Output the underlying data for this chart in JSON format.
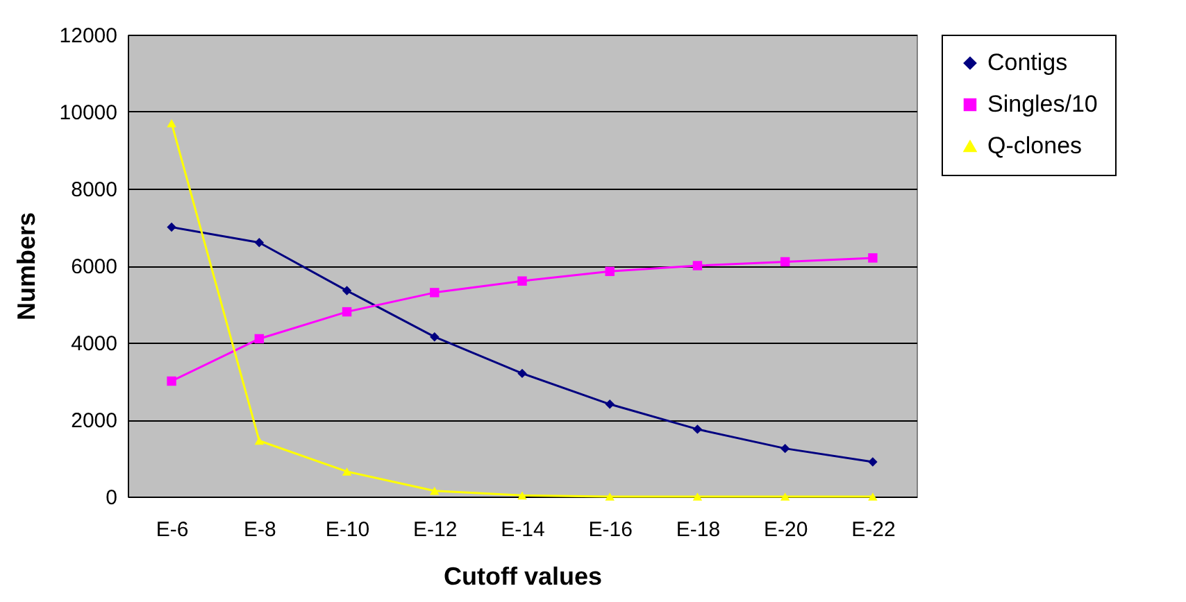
{
  "chart_data": {
    "type": "line",
    "xlabel": "Cutoff values",
    "ylabel": "Numbers",
    "categories": [
      "E-6",
      "E-8",
      "E-10",
      "E-12",
      "E-14",
      "E-16",
      "E-18",
      "E-20",
      "E-22"
    ],
    "series": [
      {
        "name": "Contigs",
        "color": "#000080",
        "marker": "diamond",
        "values": [
          7000,
          6600,
          5350,
          4150,
          3200,
          2400,
          1750,
          1250,
          900
        ]
      },
      {
        "name": "Singles/10",
        "color": "#ff00ff",
        "marker": "square",
        "values": [
          3000,
          4100,
          4800,
          5300,
          5600,
          5850,
          6000,
          6100,
          6200
        ]
      },
      {
        "name": "Q-clones",
        "color": "#ffff00",
        "marker": "triangle",
        "values": [
          9700,
          1450,
          650,
          150,
          30,
          0,
          0,
          0,
          0
        ]
      }
    ],
    "ylim": [
      0,
      12000
    ],
    "yticks": [
      0,
      2000,
      4000,
      6000,
      8000,
      10000,
      12000
    ],
    "grid": "y",
    "legend": "right",
    "line_style": "solid"
  }
}
